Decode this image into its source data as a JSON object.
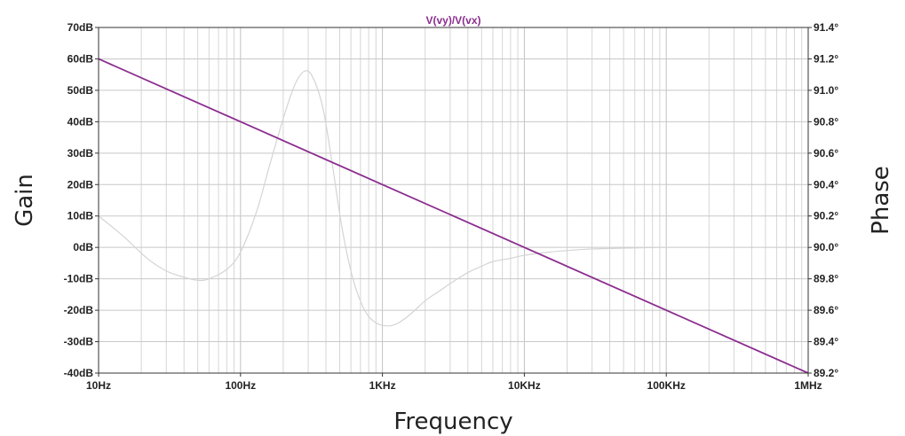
{
  "chart_data": {
    "type": "line",
    "title": "V(vy)/V(vx)",
    "xlabel": "Frequency",
    "ylabel_left": "Gain",
    "ylabel_right": "Phase",
    "x_scale": "log",
    "xlim": [
      10,
      1000000
    ],
    "x_ticks": [
      {
        "value": 10,
        "label": "10Hz"
      },
      {
        "value": 100,
        "label": "100Hz"
      },
      {
        "value": 1000,
        "label": "1KHz"
      },
      {
        "value": 10000,
        "label": "10KHz"
      },
      {
        "value": 100000,
        "label": "100KHz"
      },
      {
        "value": 1000000,
        "label": "1MHz"
      }
    ],
    "ylim_left": [
      -40,
      70
    ],
    "y_ticks_left": [
      {
        "value": 70,
        "label": "70dB"
      },
      {
        "value": 60,
        "label": "60dB"
      },
      {
        "value": 50,
        "label": "50dB"
      },
      {
        "value": 40,
        "label": "40dB"
      },
      {
        "value": 30,
        "label": "30dB"
      },
      {
        "value": 20,
        "label": "20dB"
      },
      {
        "value": 10,
        "label": "10dB"
      },
      {
        "value": 0,
        "label": "0dB"
      },
      {
        "value": -10,
        "label": "-10dB"
      },
      {
        "value": -20,
        "label": "-20dB"
      },
      {
        "value": -30,
        "label": "-30dB"
      },
      {
        "value": -40,
        "label": "-40dB"
      }
    ],
    "ylim_right": [
      89.2,
      91.4
    ],
    "y_ticks_right": [
      {
        "value": 91.4,
        "label": "91.4°"
      },
      {
        "value": 91.2,
        "label": "91.2°"
      },
      {
        "value": 91.0,
        "label": "91.0°"
      },
      {
        "value": 90.8,
        "label": "90.8°"
      },
      {
        "value": 90.6,
        "label": "90.6°"
      },
      {
        "value": 90.4,
        "label": "90.4°"
      },
      {
        "value": 90.2,
        "label": "90.2°"
      },
      {
        "value": 90.0,
        "label": "90.0°"
      },
      {
        "value": 89.8,
        "label": "89.8°"
      },
      {
        "value": 89.6,
        "label": "89.6°"
      },
      {
        "value": 89.4,
        "label": "89.4°"
      },
      {
        "value": 89.2,
        "label": "89.2°"
      }
    ],
    "grid": true,
    "series": [
      {
        "name": "V(vy)/V(vx)",
        "role": "gain",
        "axis": "left",
        "color": "#8b2d8f",
        "x": [
          10,
          100,
          1000,
          10000,
          100000,
          1000000
        ],
        "y": [
          60,
          40,
          20,
          0,
          -20,
          -40
        ]
      },
      {
        "role": "phase",
        "axis": "right",
        "color": "#d4d4d4",
        "x": [
          10,
          15,
          22,
          30,
          40,
          50,
          60,
          80,
          100,
          130,
          160,
          200,
          240,
          280,
          320,
          380,
          440,
          520,
          620,
          750,
          900,
          1100,
          1300,
          1600,
          2000,
          2500,
          3000,
          4000,
          5000,
          6000,
          8000,
          10000,
          15000,
          20000,
          30000,
          50000,
          100000,
          200000,
          330000
        ],
        "y": [
          90.2,
          90.07,
          89.93,
          89.85,
          89.81,
          89.79,
          89.8,
          89.86,
          89.97,
          90.23,
          90.52,
          90.82,
          91.03,
          91.12,
          91.09,
          90.89,
          90.55,
          90.12,
          89.8,
          89.6,
          89.52,
          89.5,
          89.52,
          89.58,
          89.66,
          89.72,
          89.77,
          89.84,
          89.88,
          89.91,
          89.93,
          89.95,
          89.97,
          89.98,
          89.99,
          89.995,
          90.0,
          90.0,
          90.0
        ]
      }
    ]
  }
}
